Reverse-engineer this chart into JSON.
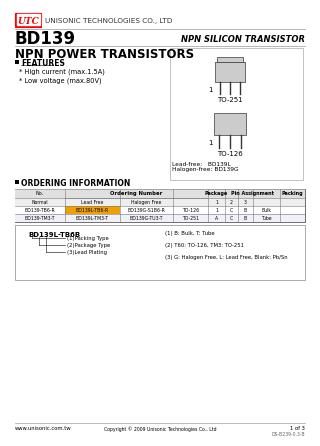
{
  "company_name": "UNISONIC TECHNOLOGIES CO., LTD",
  "utc_text": "UTC",
  "part_number": "BD139",
  "transistor_type": "NPN SILICON TRANSISTOR",
  "title": "NPN POWER TRANSISTORS",
  "features_title": "FEATURES",
  "features": [
    "* High current (max.1.5A)",
    "* Low voltage (max.80V)"
  ],
  "package1": "TO-251",
  "package2": "TO-126",
  "lead_free_label": "Lead-free:",
  "lead_free": "BD139L",
  "halogen_free_label": "Halogen-free:",
  "halogen_free": "BD139G",
  "ordering_title": "ORDERING INFORMATION",
  "table_row1": [
    "BD139-TB6-R",
    "BD139L-TB6-R",
    "BD139G-S1B6-R",
    "TO-126",
    "1",
    "C",
    "B",
    "Bulk"
  ],
  "table_row2": [
    "BD139-TM3-T",
    "BD139L-TM3-T",
    "BD139G-TU3-T",
    "TO-251",
    "A",
    "C",
    "B",
    "Tube"
  ],
  "ordering_diagram_text": "BD139L-TB6B",
  "ordering_labels": [
    "(1)Packing Type",
    "(2)Package Type",
    "(3)Lead Plating"
  ],
  "ordering_notes": [
    "(1) B: Bulk, T: Tube",
    "(2) T60: TO-126, TM3: TO-251",
    "(3) G: Halogen Free, L: Lead Free, Blank: Pb/Sn"
  ],
  "footer_website": "www.unisonic.com.tw",
  "footer_copyright": "Copyright © 2009 Unisonic Technologies Co., Ltd",
  "footer_page": "1 of 3",
  "footer_doc": "DS-B239-0.3-B",
  "highlight_color": "#f5a623",
  "highlight_color2": "#e8a000"
}
